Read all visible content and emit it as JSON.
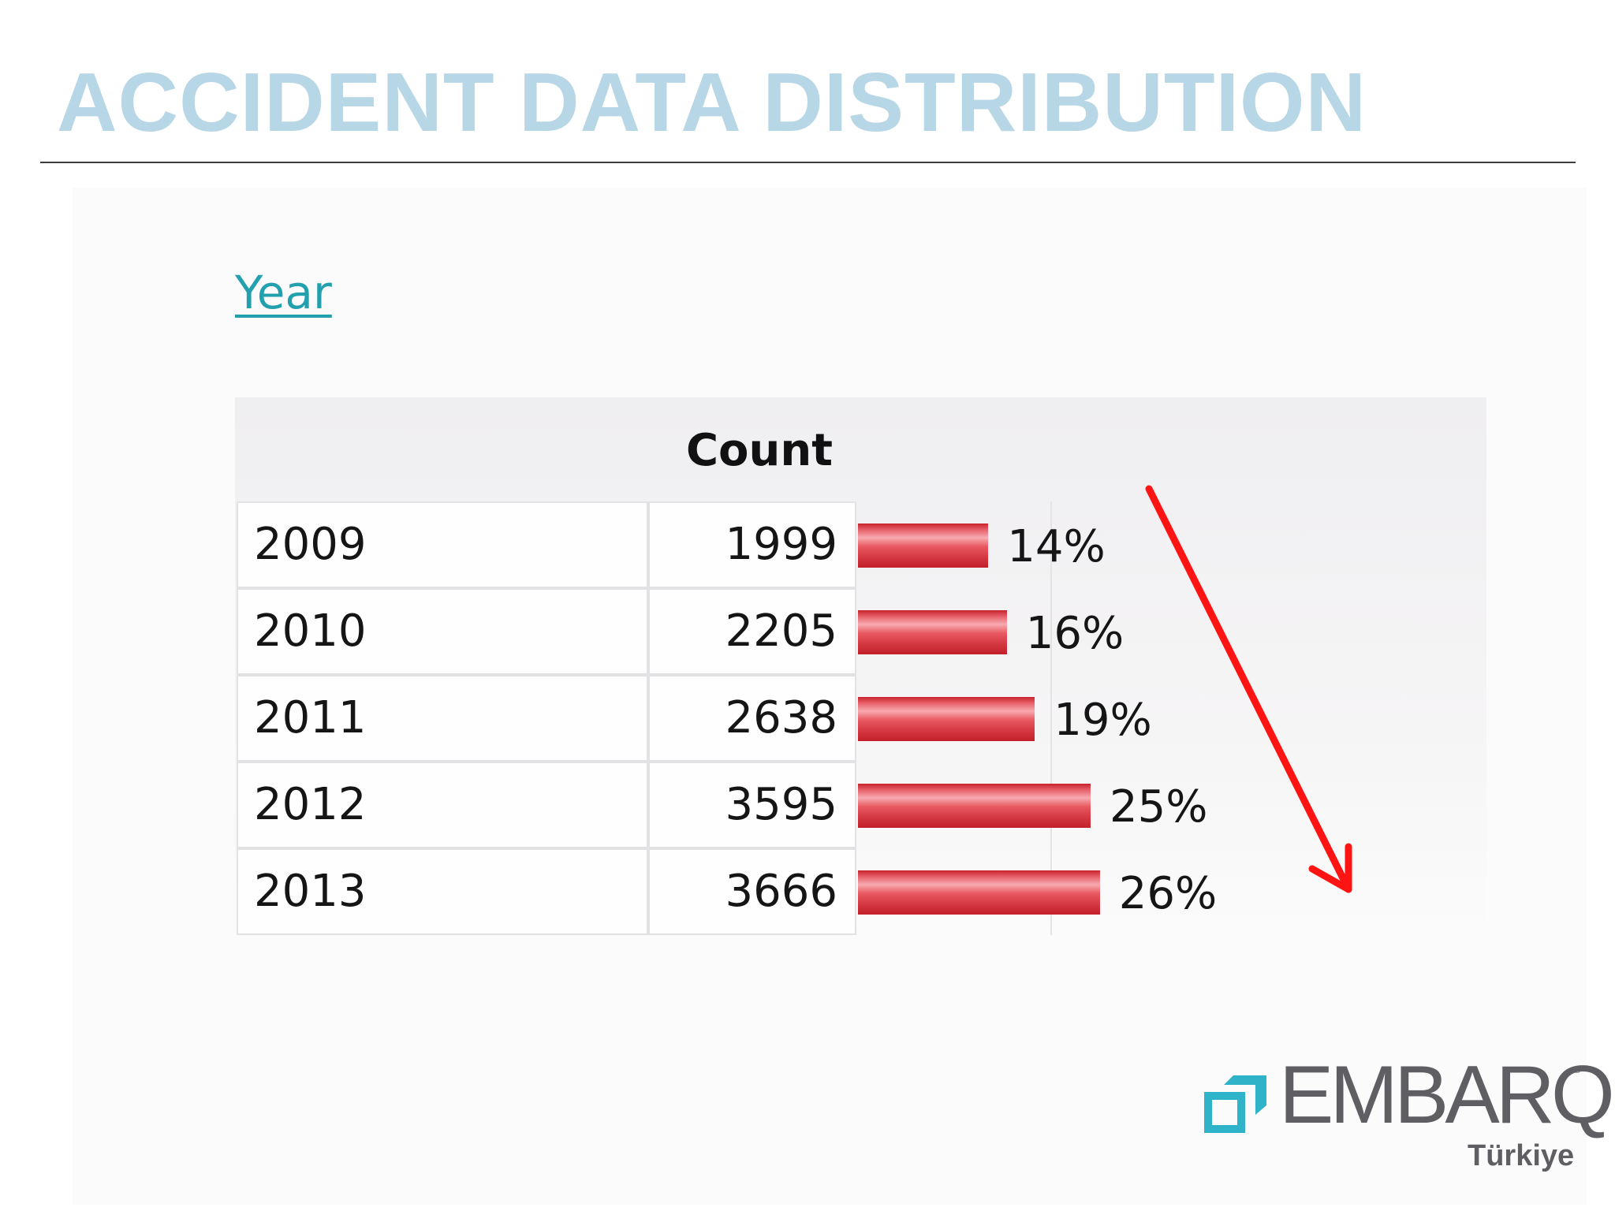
{
  "slide": {
    "title": "ACCIDENT DATA DISTRIBUTION"
  },
  "link": {
    "label": "Year"
  },
  "logo": {
    "name": "EMBARQ",
    "registered": "®",
    "subtitle": "Türkiye"
  },
  "colors": {
    "title": "#b7d6e6",
    "link": "#22a0ad",
    "bar": "#d83d47",
    "arrow": "#ff1414",
    "logo_mark": "#2fb3c8",
    "logo_text": "#5e5e63"
  },
  "chart_data": {
    "type": "bar",
    "orientation": "horizontal",
    "column_header": "Count",
    "categories": [
      "2009",
      "2010",
      "2011",
      "2012",
      "2013"
    ],
    "values": [
      1999,
      2205,
      2638,
      3595,
      3666
    ],
    "percent_values": [
      14,
      16,
      19,
      25,
      26
    ],
    "percent_labels": [
      "14%",
      "16%",
      "19%",
      "25%",
      "26%"
    ],
    "value_labels": [
      "1999",
      "2205",
      "2638",
      "3595",
      "3666"
    ],
    "xlim": [
      0,
      100
    ],
    "grid": true,
    "annotation": "downward-right red arrow"
  }
}
